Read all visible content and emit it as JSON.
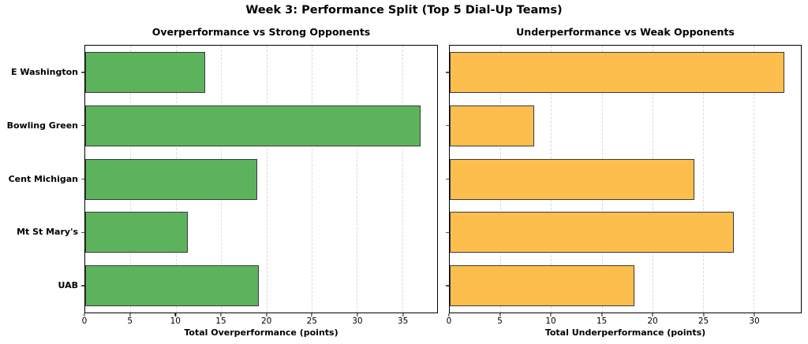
{
  "figure": {
    "title": "Week 3: Performance Split (Top 5 Dial-Up Teams)",
    "background_color": "#ffffff"
  },
  "chart_data": [
    {
      "type": "bar",
      "orientation": "horizontal",
      "title": "Overperformance vs Strong Opponents",
      "categories": [
        "E Washington",
        "Bowling Green",
        "Cent Michigan",
        "Mt St Mary's",
        "UAB"
      ],
      "values": [
        13.2,
        37.0,
        19.0,
        11.3,
        19.2
      ],
      "xlabel": "Total Overperformance (points)",
      "ylabel": "",
      "xticks": [
        0,
        5,
        10,
        15,
        20,
        25,
        30,
        35
      ],
      "xlim": [
        0,
        38.85
      ],
      "bar_color": "#5cb35c",
      "bar_edge_color": "#3a3a3a",
      "grid": "vertical-dashed",
      "grid_color": "#d9d9d9",
      "show_category_labels": true,
      "legend": "none"
    },
    {
      "type": "bar",
      "orientation": "horizontal",
      "title": "Underperformance vs Weak Opponents",
      "categories": [
        "E Washington",
        "Bowling Green",
        "Cent Michigan",
        "Mt St Mary's",
        "UAB"
      ],
      "values": [
        33.0,
        8.3,
        24.1,
        28.0,
        18.2
      ],
      "xlabel": "Total Underperformance (points)",
      "ylabel": "",
      "xticks": [
        0,
        5,
        10,
        15,
        20,
        25,
        30
      ],
      "xlim": [
        0,
        34.65
      ],
      "bar_color": "#fcbe4d",
      "bar_edge_color": "#3a3a3a",
      "grid": "vertical-dashed",
      "grid_color": "#d9d9d9",
      "show_category_labels": false,
      "legend": "none"
    }
  ]
}
